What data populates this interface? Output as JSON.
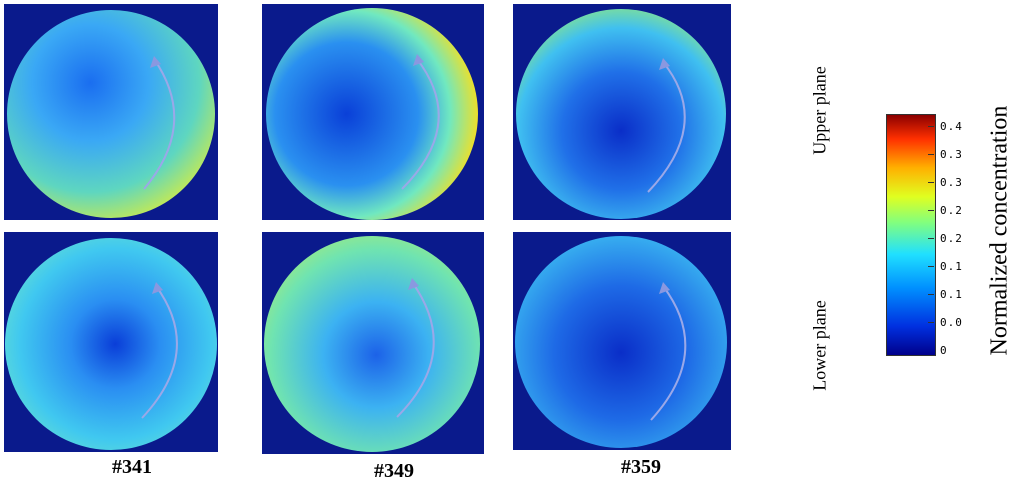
{
  "row_labels": {
    "upper": "Upper plane",
    "lower": "Lower plane"
  },
  "column_labels": [
    "#341",
    "#349",
    "#359"
  ],
  "colorbar": {
    "title": "Normalized concentration",
    "ticks": [
      "0.4",
      "0.3",
      "0.3",
      "0.2",
      "0.2",
      "0.1",
      "0.1",
      "0.0",
      "0"
    ]
  }
}
